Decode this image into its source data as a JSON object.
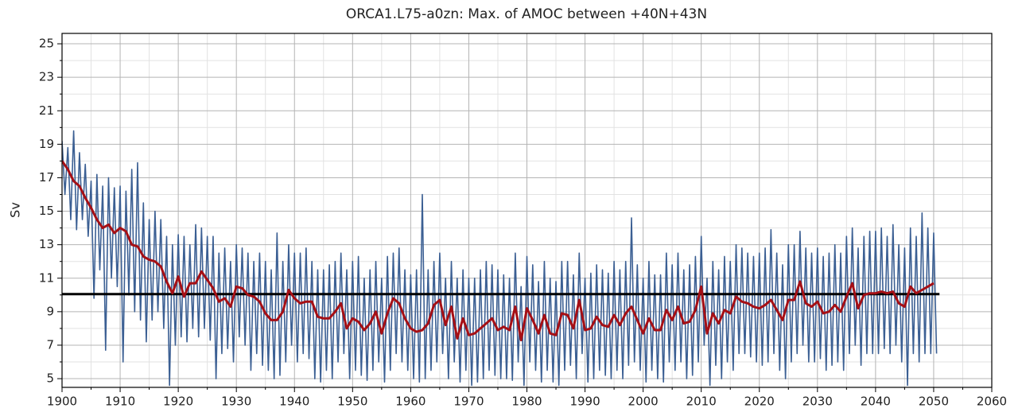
{
  "chart_data": {
    "type": "line",
    "title": "ORCA1.L75-a0zn: Max. of AMOC between +40N+43N",
    "y_label": "Sv",
    "xlim": [
      1900,
      2060
    ],
    "ylim": [
      4.48,
      25.62
    ],
    "xticks": [
      1900,
      1910,
      1920,
      1930,
      1940,
      1950,
      1960,
      1970,
      1980,
      1990,
      2000,
      2010,
      2020,
      2030,
      2040,
      2050,
      2060
    ],
    "yticks": [
      5,
      7,
      9,
      11,
      13,
      15,
      17,
      19,
      21,
      23,
      25
    ],
    "grid": true,
    "minor_grid": true,
    "reference_line": {
      "y": 10.05,
      "x": [
        1900,
        2051
      ],
      "color": "#000000"
    },
    "series": [
      {
        "color": "#3b5f93",
        "width": 1.6,
        "x": [
          1900,
          1900.5,
          1901,
          1901.5,
          1902,
          1902.5,
          1903,
          1903.5,
          1904,
          1904.5,
          1905,
          1905.5,
          1906,
          1906.5,
          1907,
          1907.5,
          1908,
          1908.5,
          1909,
          1909.5,
          1910,
          1910.5,
          1911,
          1911.5,
          1912,
          1912.5,
          1913,
          1913.5,
          1914,
          1914.5,
          1915,
          1915.5,
          1916,
          1916.5,
          1917,
          1917.5,
          1918,
          1918.5,
          1919,
          1919.5,
          1920,
          1920.5,
          1921,
          1921.5,
          1922,
          1922.5,
          1923,
          1923.5,
          1924,
          1924.5,
          1925,
          1925.5,
          1926,
          1926.5,
          1927,
          1927.5,
          1928,
          1928.5,
          1929,
          1929.5,
          1930,
          1930.5,
          1931,
          1931.5,
          1932,
          1932.5,
          1933,
          1933.5,
          1934,
          1934.5,
          1935,
          1935.5,
          1936,
          1936.5,
          1937,
          1937.5,
          1938,
          1938.5,
          1939,
          1939.5,
          1940,
          1940.5,
          1941,
          1941.5,
          1942,
          1942.5,
          1943,
          1943.5,
          1944,
          1944.5,
          1945,
          1945.5,
          1946,
          1946.5,
          1947,
          1947.5,
          1948,
          1948.5,
          1949,
          1949.5,
          1950,
          1950.5,
          1951,
          1951.5,
          1952,
          1952.5,
          1953,
          1953.5,
          1954,
          1954.5,
          1955,
          1955.5,
          1956,
          1956.5,
          1957,
          1957.5,
          1958,
          1958.5,
          1959,
          1959.5,
          1960,
          1960.5,
          1961,
          1961.5,
          1962,
          1962.5,
          1963,
          1963.5,
          1964,
          1964.5,
          1965,
          1965.5,
          1966,
          1966.5,
          1967,
          1967.5,
          1968,
          1968.5,
          1969,
          1969.5,
          1970,
          1970.5,
          1971,
          1971.5,
          1972,
          1972.5,
          1973,
          1973.5,
          1974,
          1974.5,
          1975,
          1975.5,
          1976,
          1976.5,
          1977,
          1977.5,
          1978,
          1978.5,
          1979,
          1979.5,
          1980,
          1980.5,
          1981,
          1981.5,
          1982,
          1982.5,
          1983,
          1983.5,
          1984,
          1984.5,
          1985,
          1985.5,
          1986,
          1986.5,
          1987,
          1987.5,
          1988,
          1988.5,
          1989,
          1989.5,
          1990,
          1990.5,
          1991,
          1991.5,
          1992,
          1992.5,
          1993,
          1993.5,
          1994,
          1994.5,
          1995,
          1995.5,
          1996,
          1996.5,
          1997,
          1997.5,
          1998,
          1998.5,
          1999,
          1999.5,
          2000,
          2000.5,
          2001,
          2001.5,
          2002,
          2002.5,
          2003,
          2003.5,
          2004,
          2004.5,
          2005,
          2005.5,
          2006,
          2006.5,
          2007,
          2007.5,
          2008,
          2008.5,
          2009,
          2009.5,
          2010,
          2010.5,
          2011,
          2011.5,
          2012,
          2012.5,
          2013,
          2013.5,
          2014,
          2014.5,
          2015,
          2015.5,
          2016,
          2016.5,
          2017,
          2017.5,
          2018,
          2018.5,
          2019,
          2019.5,
          2020,
          2020.5,
          2021,
          2021.5,
          2022,
          2022.5,
          2023,
          2023.5,
          2024,
          2024.5,
          2025,
          2025.5,
          2026,
          2026.5,
          2027,
          2027.5,
          2028,
          2028.5,
          2029,
          2029.5,
          2030,
          2030.5,
          2031,
          2031.5,
          2032,
          2032.5,
          2033,
          2033.5,
          2034,
          2034.5,
          2035,
          2035.5,
          2036,
          2036.5,
          2037,
          2037.5,
          2038,
          2038.5,
          2039,
          2039.5,
          2040,
          2040.5,
          2041,
          2041.5,
          2042,
          2042.5,
          2043,
          2043.5,
          2044,
          2044.5,
          2045,
          2045.5,
          2046,
          2046.5,
          2047,
          2047.5,
          2048,
          2048.5,
          2049,
          2049.5,
          2050,
          2050.5
        ],
        "values": [
          19.2,
          16.0,
          18.8,
          14.5,
          19.8,
          13.9,
          18.5,
          14.5,
          17.8,
          13.5,
          16.8,
          9.8,
          17.2,
          11.5,
          16.5,
          6.7,
          17.0,
          11.0,
          16.4,
          10.5,
          16.5,
          6.0,
          16.2,
          10.0,
          17.5,
          9.0,
          17.9,
          8.5,
          15.5,
          7.2,
          14.5,
          8.5,
          15.0,
          9.0,
          14.5,
          8.0,
          13.5,
          4.6,
          13.0,
          7.0,
          13.6,
          7.5,
          13.5,
          7.2,
          13.0,
          8.0,
          14.2,
          7.5,
          14.0,
          8.0,
          13.5,
          7.3,
          13.5,
          5.0,
          12.5,
          6.5,
          12.8,
          6.8,
          12.0,
          6.0,
          13.0,
          7.5,
          12.8,
          7.0,
          12.5,
          5.5,
          12.0,
          6.5,
          12.5,
          5.8,
          12.0,
          5.5,
          11.5,
          5.0,
          13.7,
          5.2,
          12.0,
          6.0,
          13.0,
          7.0,
          12.5,
          6.0,
          12.5,
          6.5,
          12.8,
          6.2,
          12.0,
          5.0,
          11.5,
          4.8,
          11.5,
          5.5,
          11.8,
          5.0,
          12.0,
          6.0,
          12.5,
          6.5,
          11.5,
          5.0,
          12.0,
          5.5,
          12.3,
          5.2,
          11.0,
          4.9,
          11.5,
          5.5,
          12.0,
          6.0,
          11.0,
          4.8,
          12.3,
          5.5,
          12.5,
          6.5,
          12.8,
          6.0,
          11.5,
          5.5,
          11.2,
          5.0,
          11.5,
          4.8,
          16.0,
          5.0,
          11.5,
          5.5,
          12.0,
          6.0,
          12.5,
          6.5,
          11.0,
          5.0,
          12.0,
          6.0,
          11.0,
          4.8,
          11.5,
          5.5,
          11.0,
          4.6,
          11.0,
          4.8,
          11.5,
          5.0,
          12.0,
          5.5,
          11.8,
          5.2,
          11.5,
          5.0,
          11.2,
          5.0,
          11.0,
          4.9,
          12.5,
          6.0,
          10.5,
          4.6,
          12.3,
          6.0,
          11.8,
          5.5,
          10.8,
          4.8,
          12.0,
          5.5,
          11.0,
          4.8,
          10.8,
          4.6,
          12.0,
          5.5,
          12.0,
          5.8,
          11.2,
          5.0,
          12.5,
          6.5,
          11.0,
          4.8,
          11.3,
          5.0,
          11.8,
          5.5,
          11.5,
          5.2,
          11.3,
          5.0,
          12.0,
          5.5,
          11.5,
          5.0,
          12.0,
          5.8,
          14.6,
          6.0,
          11.8,
          5.5,
          11.0,
          4.8,
          12.0,
          5.5,
          11.2,
          5.0,
          11.2,
          4.8,
          12.5,
          6.0,
          11.8,
          5.5,
          12.5,
          6.0,
          11.5,
          5.0,
          11.8,
          5.2,
          12.3,
          6.0,
          13.5,
          7.0,
          11.0,
          4.6,
          12.0,
          5.8,
          11.5,
          5.0,
          12.3,
          6.0,
          12.0,
          5.5,
          13.0,
          6.5,
          12.8,
          6.5,
          12.5,
          6.3,
          12.3,
          6.0,
          12.5,
          5.8,
          12.8,
          6.0,
          13.9,
          6.5,
          12.5,
          5.5,
          11.8,
          5.0,
          13.0,
          6.0,
          13.0,
          6.5,
          13.8,
          7.0,
          12.8,
          6.0,
          12.5,
          6.0,
          12.8,
          6.2,
          12.3,
          5.5,
          12.5,
          5.8,
          13.0,
          6.0,
          12.5,
          5.5,
          13.5,
          6.5,
          14.0,
          7.0,
          12.8,
          5.8,
          13.5,
          6.5,
          13.8,
          6.5,
          13.8,
          6.5,
          14.0,
          6.8,
          13.5,
          6.5,
          14.2,
          7.0,
          13.0,
          6.0,
          12.8,
          4.6,
          14.0,
          6.5,
          13.5,
          6.0,
          14.9,
          6.5,
          14.0,
          6.5,
          13.7,
          6.5
        ]
      },
      {
        "color": "#a50f15",
        "width": 3,
        "x": [
          1900,
          1901,
          1902,
          1903,
          1904,
          1905,
          1906,
          1907,
          1908,
          1909,
          1910,
          1911,
          1912,
          1913,
          1914,
          1915,
          1916,
          1917,
          1918,
          1919,
          1920,
          1921,
          1922,
          1923,
          1924,
          1925,
          1926,
          1927,
          1928,
          1929,
          1930,
          1931,
          1932,
          1933,
          1934,
          1935,
          1936,
          1937,
          1938,
          1939,
          1940,
          1941,
          1942,
          1943,
          1944,
          1945,
          1946,
          1947,
          1948,
          1949,
          1950,
          1951,
          1952,
          1953,
          1954,
          1955,
          1956,
          1957,
          1958,
          1959,
          1960,
          1961,
          1962,
          1963,
          1964,
          1965,
          1966,
          1967,
          1968,
          1969,
          1970,
          1971,
          1972,
          1973,
          1974,
          1975,
          1976,
          1977,
          1978,
          1979,
          1980,
          1981,
          1982,
          1983,
          1984,
          1985,
          1986,
          1987,
          1988,
          1989,
          1990,
          1991,
          1992,
          1993,
          1994,
          1995,
          1996,
          1997,
          1998,
          1999,
          2000,
          2001,
          2002,
          2003,
          2004,
          2005,
          2006,
          2007,
          2008,
          2009,
          2010,
          2011,
          2012,
          2013,
          2014,
          2015,
          2016,
          2017,
          2018,
          2019,
          2020,
          2021,
          2022,
          2023,
          2024,
          2025,
          2026,
          2027,
          2028,
          2029,
          2030,
          2031,
          2032,
          2033,
          2034,
          2035,
          2036,
          2037,
          2038,
          2039,
          2040,
          2041,
          2042,
          2043,
          2044,
          2045,
          2046,
          2047,
          2048,
          2049,
          2050
        ],
        "values": [
          18.0,
          17.5,
          16.8,
          16.5,
          15.8,
          15.2,
          14.5,
          14.0,
          14.2,
          13.7,
          14.0,
          13.8,
          13.0,
          12.9,
          12.3,
          12.1,
          12.0,
          11.7,
          10.8,
          10.1,
          11.1,
          9.9,
          10.7,
          10.7,
          11.4,
          10.9,
          10.4,
          9.6,
          9.8,
          9.3,
          10.5,
          10.4,
          10.0,
          9.9,
          9.6,
          8.9,
          8.5,
          8.5,
          9.0,
          10.3,
          9.8,
          9.5,
          9.6,
          9.6,
          8.7,
          8.6,
          8.6,
          9.0,
          9.5,
          8.0,
          8.6,
          8.4,
          7.9,
          8.3,
          9.0,
          7.7,
          8.9,
          9.8,
          9.5,
          8.6,
          8.0,
          7.8,
          7.9,
          8.3,
          9.4,
          9.7,
          8.2,
          9.3,
          7.4,
          8.6,
          7.6,
          7.7,
          8.0,
          8.3,
          8.6,
          7.9,
          8.1,
          7.9,
          9.3,
          7.3,
          9.2,
          8.5,
          7.7,
          8.8,
          7.7,
          7.6,
          8.9,
          8.8,
          8.0,
          9.7,
          7.9,
          8.0,
          8.7,
          8.2,
          8.1,
          8.8,
          8.2,
          8.9,
          9.3,
          8.5,
          7.7,
          8.6,
          7.9,
          7.9,
          9.1,
          8.5,
          9.3,
          8.3,
          8.4,
          9.1,
          10.5,
          7.7,
          8.9,
          8.3,
          9.1,
          8.9,
          9.9,
          9.6,
          9.5,
          9.3,
          9.2,
          9.4,
          9.7,
          9.1,
          8.5,
          9.7,
          9.7,
          10.8,
          9.5,
          9.3,
          9.6,
          8.9,
          9.0,
          9.4,
          9.0,
          9.9,
          10.7,
          9.2,
          10.0,
          10.1,
          10.1,
          10.2,
          10.1,
          10.2,
          9.5,
          9.3,
          10.5,
          10.1,
          10.3,
          10.5,
          10.7
        ]
      }
    ]
  }
}
